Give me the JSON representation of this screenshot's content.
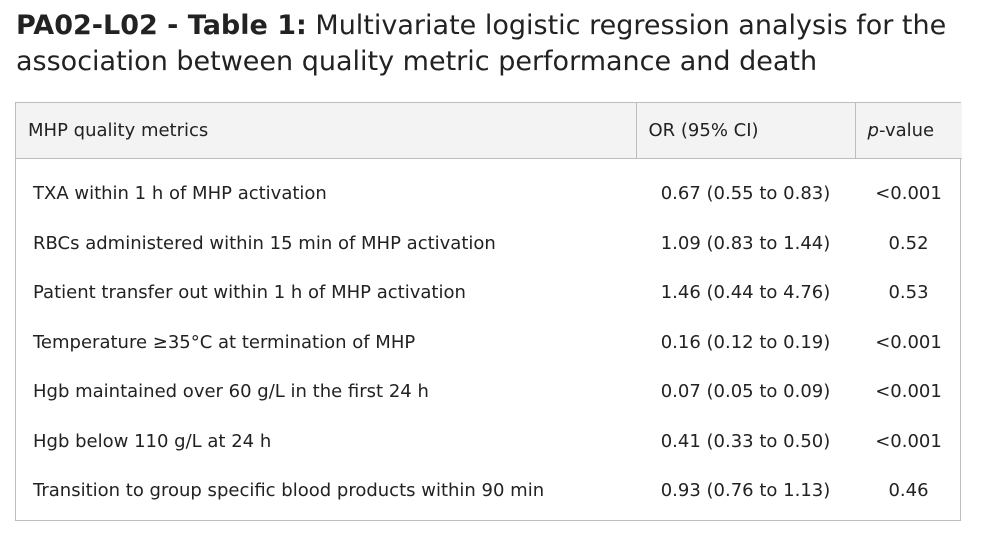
{
  "title": {
    "label": "PA02-L02 - Table 1:",
    "text": " Multivariate logistic regression analysis for the association between quality metric performance and death"
  },
  "table": {
    "headers": {
      "metric": "MHP quality metrics",
      "or": "OR (95% CI)",
      "p_italic": "p",
      "p_rest": "-value"
    },
    "rows": [
      {
        "metric": "TXA within 1 h of MHP activation",
        "or": "0.67 (0.55 to 0.83)",
        "p": "<0.001"
      },
      {
        "metric": "RBCs administered within 15 min of MHP activation",
        "or": "1.09 (0.83 to 1.44)",
        "p": "0.52"
      },
      {
        "metric": "Patient transfer out within 1 h of MHP activation",
        "or": "1.46 (0.44 to 4.76)",
        "p": "0.53"
      },
      {
        "metric": "Temperature ≥35°C at termination of MHP",
        "or": "0.16 (0.12 to 0.19)",
        "p": "<0.001"
      },
      {
        "metric": "Hgb maintained over 60 g/L in the first 24 h",
        "or": "0.07 (0.05 to 0.09)",
        "p": "<0.001"
      },
      {
        "metric": "Hgb below 110 g/L at 24 h",
        "or": "0.41 (0.33 to 0.50)",
        "p": "<0.001"
      },
      {
        "metric": "Transition to group specific blood products within 90 min",
        "or": "0.93 (0.76 to 1.13)",
        "p": "0.46"
      }
    ]
  }
}
